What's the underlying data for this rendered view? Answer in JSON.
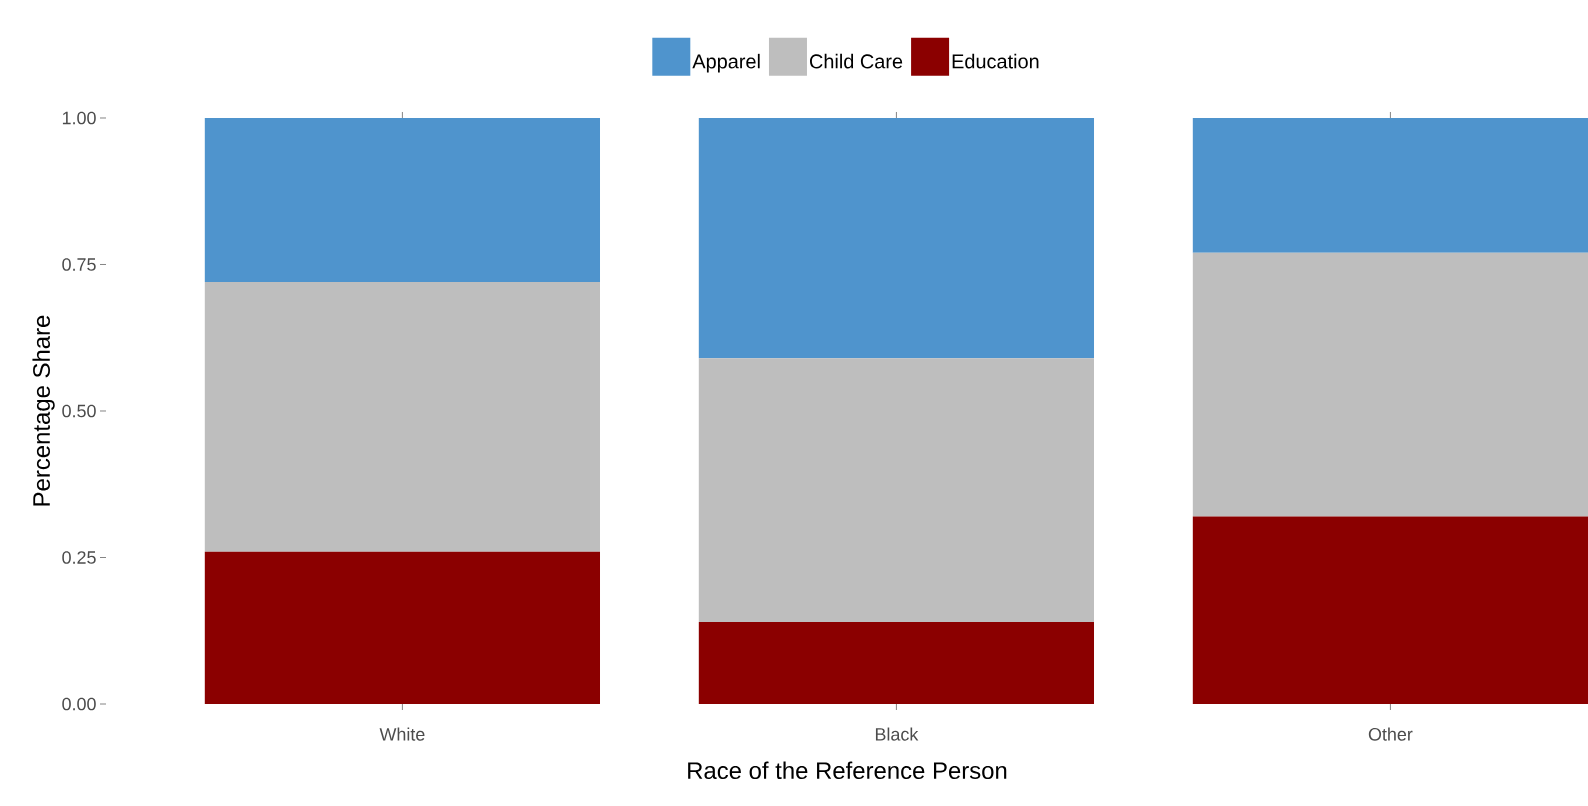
{
  "chart_data": {
    "type": "bar",
    "stacked": true,
    "xlabel": "Race of the Reference Person",
    "ylabel": "Percentage Share",
    "categories": [
      "White",
      "Black",
      "Other"
    ],
    "series": [
      {
        "name": "Education",
        "color": "#8b0000",
        "values": [
          0.26,
          0.14,
          0.32
        ]
      },
      {
        "name": "Child Care",
        "color": "#bebebe",
        "values": [
          0.46,
          0.45,
          0.45
        ]
      },
      {
        "name": "Apparel",
        "color": "#4f94cd",
        "values": [
          0.28,
          0.41,
          0.23
        ]
      }
    ],
    "ylim": [
      0,
      1
    ],
    "yticks": [
      {
        "value": 0,
        "label": "0.00"
      },
      {
        "value": 0.25,
        "label": "0.25"
      },
      {
        "value": 0.5,
        "label": "0.50"
      },
      {
        "value": 0.75,
        "label": "0.75"
      },
      {
        "value": 1,
        "label": "1.00"
      }
    ],
    "grid": false,
    "legend": "top"
  }
}
